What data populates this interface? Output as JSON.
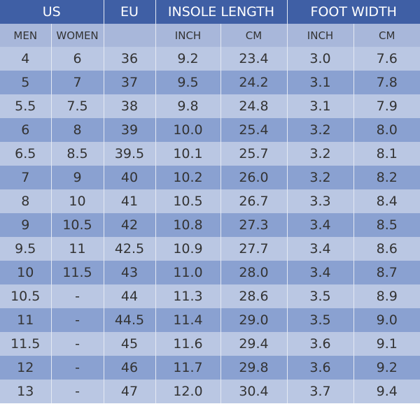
{
  "header": {
    "groups": [
      "US",
      "EU",
      "INSOLE LENGTH",
      "FOOT WIDTH"
    ],
    "sub": [
      "MEN",
      "WOMEN",
      "INCH",
      "CM",
      "INCH",
      "CM"
    ]
  },
  "table": {
    "rows": [
      [
        "4",
        "6",
        "36",
        "9.2",
        "23.4",
        "3.0",
        "7.6"
      ],
      [
        "5",
        "7",
        "37",
        "9.5",
        "24.2",
        "3.1",
        "7.8"
      ],
      [
        "5.5",
        "7.5",
        "38",
        "9.8",
        "24.8",
        "3.1",
        "7.9"
      ],
      [
        "6",
        "8",
        "39",
        "10.0",
        "25.4",
        "3.2",
        "8.0"
      ],
      [
        "6.5",
        "8.5",
        "39.5",
        "10.1",
        "25.7",
        "3.2",
        "8.1"
      ],
      [
        "7",
        "9",
        "40",
        "10.2",
        "26.0",
        "3.2",
        "8.2"
      ],
      [
        "8",
        "10",
        "41",
        "10.5",
        "26.7",
        "3.3",
        "8.4"
      ],
      [
        "9",
        "10.5",
        "42",
        "10.8",
        "27.3",
        "3.4",
        "8.5"
      ],
      [
        "9.5",
        "11",
        "42.5",
        "10.9",
        "27.7",
        "3.4",
        "8.6"
      ],
      [
        "10",
        "11.5",
        "43",
        "11.0",
        "28.0",
        "3.4",
        "8.7"
      ],
      [
        "10.5",
        "-",
        "44",
        "11.3",
        "28.6",
        "3.5",
        "8.9"
      ],
      [
        "11",
        "-",
        "44.5",
        "11.4",
        "29.0",
        "3.5",
        "9.0"
      ],
      [
        "11.5",
        "-",
        "45",
        "11.6",
        "29.4",
        "3.6",
        "9.1"
      ],
      [
        "12",
        "-",
        "46",
        "11.7",
        "29.8",
        "3.6",
        "9.2"
      ],
      [
        "13",
        "-",
        "47",
        "12.0",
        "30.4",
        "3.7",
        "9.4"
      ]
    ]
  }
}
